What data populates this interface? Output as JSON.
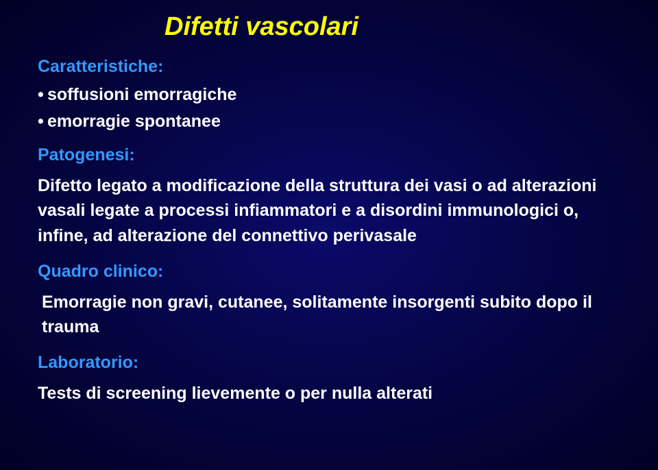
{
  "colors": {
    "background_center": "#0a0a6a",
    "background_mid": "#040440",
    "background_edge": "#010125",
    "title_color": "#ffff00",
    "heading_color": "#3399ff",
    "body_text_color": "#ffffff"
  },
  "typography": {
    "title_fontsize": 38,
    "title_style": "bold italic",
    "heading_fontsize": 25,
    "heading_weight": "bold",
    "body_fontsize": 25,
    "body_weight": "bold",
    "font_family": "Arial"
  },
  "title": "Difetti vascolari",
  "sections": {
    "caratteristiche": {
      "heading": "Caratteristiche:",
      "bullets": [
        "soffusioni emorragiche",
        "emorragie spontanee"
      ]
    },
    "patogenesi": {
      "heading": "Patogenesi:",
      "text": "Difetto legato a modificazione della struttura dei vasi o ad alterazioni vasali legate a processi infiammatori e a disordini immunologici o, infine, ad alterazione del connettivo perivasale"
    },
    "quadro_clinico": {
      "heading": "Quadro clinico:",
      "text": "Emorragie non gravi, cutanee, solitamente insorgenti subito dopo il trauma"
    },
    "laboratorio": {
      "heading": "Laboratorio:",
      "text": "Tests di screening lievemente o per nulla alterati"
    }
  }
}
